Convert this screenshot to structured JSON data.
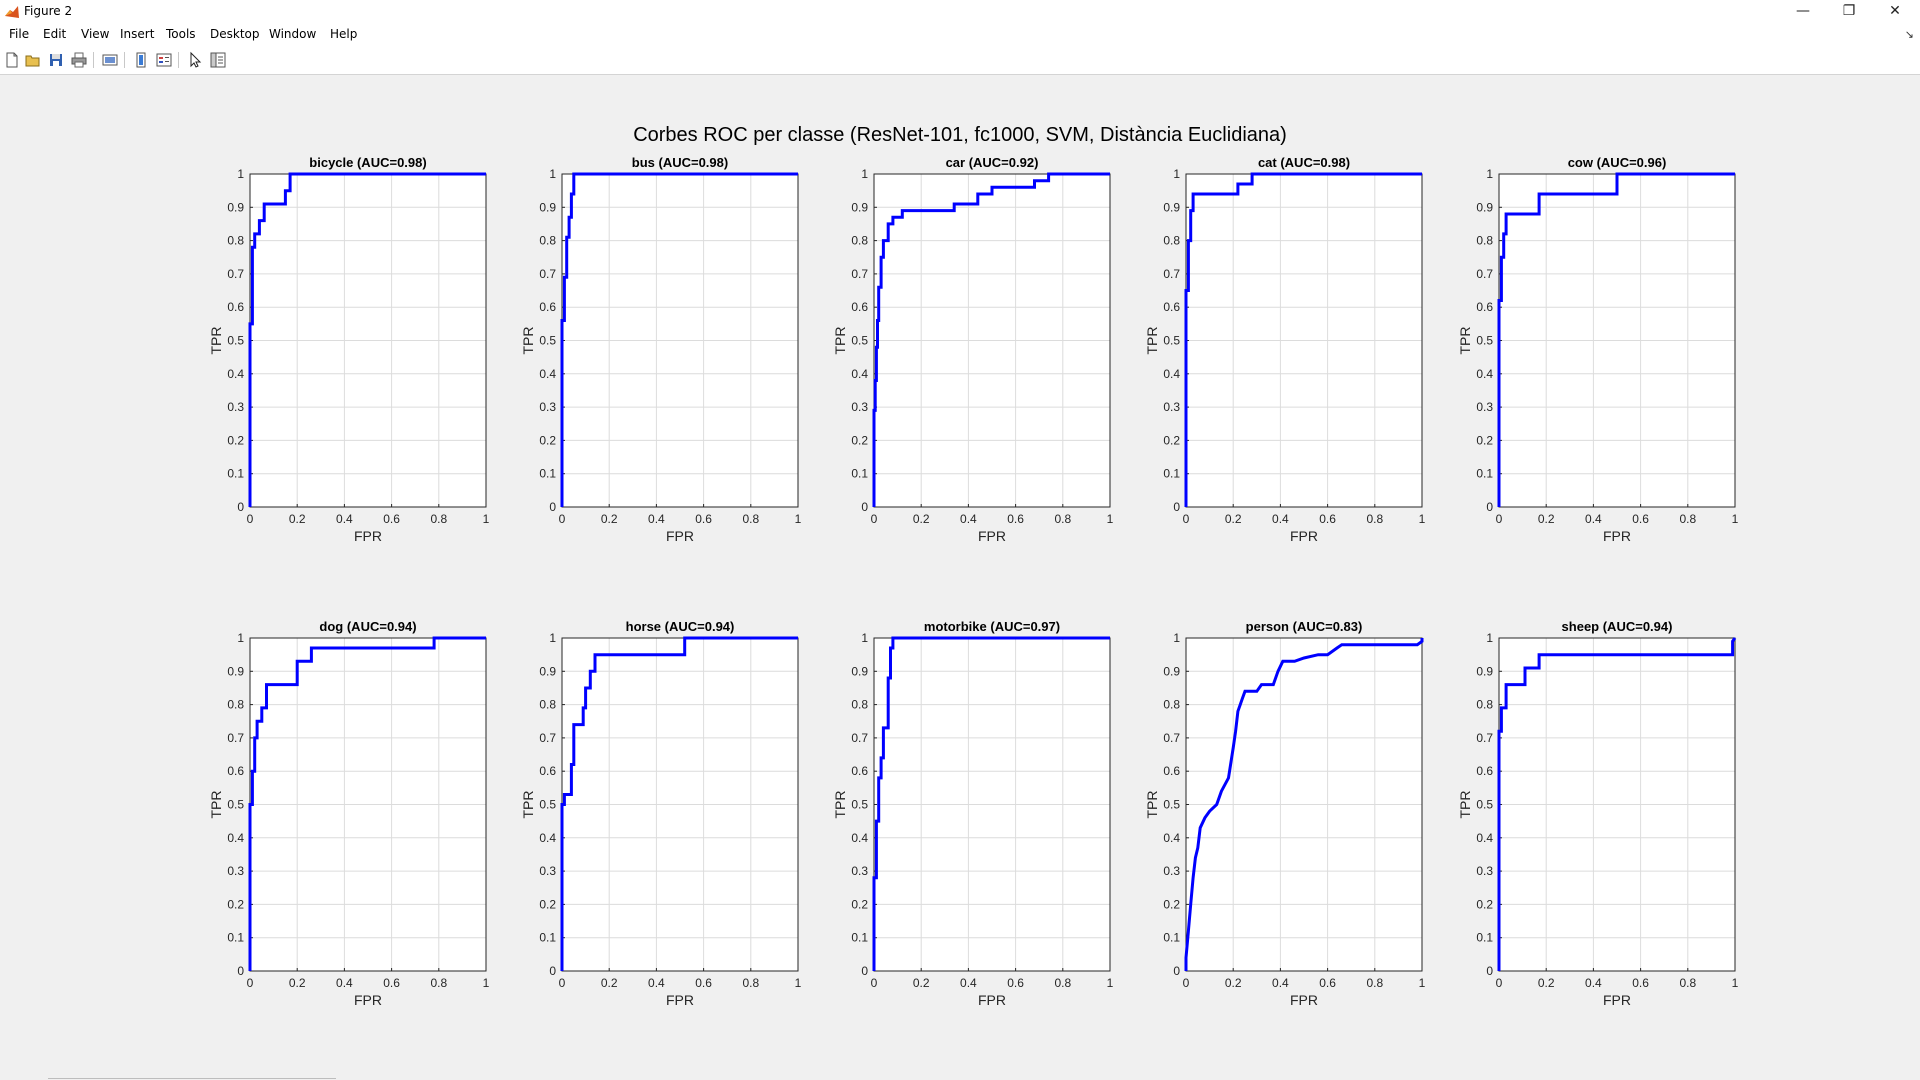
{
  "window": {
    "title": "Figure 2",
    "minimize_glyph": "—",
    "restore_glyph": "❐",
    "close_glyph": "✕"
  },
  "menu": [
    "File",
    "Edit",
    "View",
    "Insert",
    "Tools",
    "Desktop",
    "Window",
    "Help"
  ],
  "toolbar": {
    "icons": [
      "new-figure-icon",
      "open-file-icon",
      "save-icon",
      "print-icon",
      "link-plot-icon",
      "colorbar-icon",
      "legend-icon",
      "edit-plot-icon",
      "property-inspector-icon"
    ]
  },
  "colors": {
    "curve": "#0000ff",
    "grid": "#dcdcdc",
    "axes": "#262626"
  },
  "figure_title": "Corbes ROC per classe (ResNet-101, fc1000, SVM, Distància Euclidiana)",
  "chart_data": [
    {
      "type": "line",
      "title": "bicycle (AUC=0.98)",
      "xlabel": "FPR",
      "ylabel": "TPR",
      "xlim": [
        0,
        1
      ],
      "ylim": [
        0,
        1
      ],
      "grid": true,
      "x": [
        0,
        0,
        0.01,
        0.01,
        0.02,
        0.02,
        0.04,
        0.04,
        0.06,
        0.06,
        0.15,
        0.15,
        0.17,
        0.17,
        1
      ],
      "y": [
        0,
        0.55,
        0.55,
        0.78,
        0.78,
        0.82,
        0.82,
        0.86,
        0.86,
        0.91,
        0.91,
        0.95,
        0.95,
        1,
        1
      ]
    },
    {
      "type": "line",
      "title": "bus (AUC=0.98)",
      "xlabel": "FPR",
      "ylabel": "TPR",
      "xlim": [
        0,
        1
      ],
      "ylim": [
        0,
        1
      ],
      "grid": true,
      "x": [
        0,
        0,
        0.01,
        0.01,
        0.02,
        0.02,
        0.03,
        0.03,
        0.04,
        0.04,
        0.05,
        0.05,
        1
      ],
      "y": [
        0,
        0.56,
        0.56,
        0.69,
        0.69,
        0.81,
        0.81,
        0.87,
        0.87,
        0.94,
        0.94,
        1,
        1
      ]
    },
    {
      "type": "line",
      "title": "car (AUC=0.92)",
      "xlabel": "FPR",
      "ylabel": "TPR",
      "xlim": [
        0,
        1
      ],
      "ylim": [
        0,
        1
      ],
      "grid": true,
      "x": [
        0,
        0,
        0.005,
        0.005,
        0.01,
        0.01,
        0.015,
        0.015,
        0.02,
        0.02,
        0.03,
        0.03,
        0.04,
        0.04,
        0.06,
        0.06,
        0.08,
        0.08,
        0.12,
        0.12,
        0.34,
        0.34,
        0.44,
        0.44,
        0.5,
        0.5,
        0.68,
        0.68,
        0.74,
        0.74,
        1
      ],
      "y": [
        0,
        0.29,
        0.29,
        0.38,
        0.38,
        0.48,
        0.48,
        0.56,
        0.56,
        0.66,
        0.66,
        0.75,
        0.75,
        0.8,
        0.8,
        0.85,
        0.85,
        0.87,
        0.87,
        0.89,
        0.89,
        0.91,
        0.91,
        0.94,
        0.94,
        0.96,
        0.96,
        0.98,
        0.98,
        1,
        1
      ]
    },
    {
      "type": "line",
      "title": "cat (AUC=0.98)",
      "xlabel": "FPR",
      "ylabel": "TPR",
      "xlim": [
        0,
        1
      ],
      "ylim": [
        0,
        1
      ],
      "grid": true,
      "x": [
        0,
        0,
        0.01,
        0.01,
        0.02,
        0.02,
        0.03,
        0.03,
        0.22,
        0.22,
        0.28,
        0.28,
        1
      ],
      "y": [
        0,
        0.65,
        0.65,
        0.8,
        0.8,
        0.89,
        0.89,
        0.94,
        0.94,
        0.97,
        0.97,
        1,
        1
      ]
    },
    {
      "type": "line",
      "title": "cow (AUC=0.96)",
      "xlabel": "FPR",
      "ylabel": "TPR",
      "xlim": [
        0,
        1
      ],
      "ylim": [
        0,
        1
      ],
      "grid": true,
      "x": [
        0,
        0,
        0.01,
        0.01,
        0.02,
        0.02,
        0.03,
        0.03,
        0.17,
        0.17,
        0.5,
        0.5,
        1
      ],
      "y": [
        0,
        0.62,
        0.62,
        0.75,
        0.75,
        0.82,
        0.82,
        0.88,
        0.88,
        0.94,
        0.94,
        1,
        1
      ]
    },
    {
      "type": "line",
      "title": "dog (AUC=0.94)",
      "xlabel": "FPR",
      "ylabel": "TPR",
      "xlim": [
        0,
        1
      ],
      "ylim": [
        0,
        1
      ],
      "grid": true,
      "x": [
        0,
        0,
        0.01,
        0.01,
        0.02,
        0.02,
        0.03,
        0.03,
        0.05,
        0.05,
        0.07,
        0.07,
        0.2,
        0.2,
        0.26,
        0.26,
        0.78,
        0.78,
        1
      ],
      "y": [
        0,
        0.5,
        0.5,
        0.6,
        0.6,
        0.7,
        0.7,
        0.75,
        0.75,
        0.79,
        0.79,
        0.86,
        0.86,
        0.93,
        0.93,
        0.97,
        0.97,
        1,
        1
      ]
    },
    {
      "type": "line",
      "title": "horse (AUC=0.94)",
      "xlabel": "FPR",
      "ylabel": "TPR",
      "xlim": [
        0,
        1
      ],
      "ylim": [
        0,
        1
      ],
      "grid": true,
      "x": [
        0,
        0,
        0.01,
        0.01,
        0.04,
        0.04,
        0.05,
        0.05,
        0.09,
        0.09,
        0.1,
        0.1,
        0.12,
        0.12,
        0.14,
        0.14,
        0.52,
        0.52,
        1
      ],
      "y": [
        0,
        0.5,
        0.5,
        0.53,
        0.53,
        0.62,
        0.62,
        0.74,
        0.74,
        0.79,
        0.79,
        0.85,
        0.85,
        0.9,
        0.9,
        0.95,
        0.95,
        1,
        1
      ]
    },
    {
      "type": "line",
      "title": "motorbike (AUC=0.97)",
      "xlabel": "FPR",
      "ylabel": "TPR",
      "xlim": [
        0,
        1
      ],
      "ylim": [
        0,
        1
      ],
      "grid": true,
      "x": [
        0,
        0,
        0.01,
        0.01,
        0.02,
        0.02,
        0.03,
        0.03,
        0.04,
        0.04,
        0.06,
        0.06,
        0.07,
        0.07,
        0.08,
        0.08,
        1
      ],
      "y": [
        0,
        0.28,
        0.28,
        0.45,
        0.45,
        0.58,
        0.58,
        0.64,
        0.64,
        0.73,
        0.73,
        0.88,
        0.88,
        0.97,
        0.97,
        1,
        1
      ]
    },
    {
      "type": "line",
      "title": "person (AUC=0.83)",
      "xlabel": "FPR",
      "ylabel": "TPR",
      "xlim": [
        0,
        1
      ],
      "ylim": [
        0,
        1
      ],
      "grid": true,
      "x": [
        0,
        0,
        0.01,
        0.02,
        0.03,
        0.04,
        0.05,
        0.06,
        0.08,
        0.1,
        0.13,
        0.15,
        0.18,
        0.2,
        0.21,
        0.22,
        0.24,
        0.25,
        0.3,
        0.32,
        0.37,
        0.39,
        0.41,
        0.46,
        0.5,
        0.56,
        0.6,
        0.64,
        0.66,
        0.98,
        1,
        1
      ],
      "y": [
        0,
        0.04,
        0.12,
        0.2,
        0.28,
        0.34,
        0.37,
        0.43,
        0.46,
        0.48,
        0.5,
        0.54,
        0.58,
        0.67,
        0.72,
        0.78,
        0.82,
        0.84,
        0.84,
        0.86,
        0.86,
        0.9,
        0.93,
        0.93,
        0.94,
        0.95,
        0.95,
        0.97,
        0.98,
        0.98,
        0.99,
        1
      ]
    },
    {
      "type": "line",
      "title": "sheep (AUC=0.94)",
      "xlabel": "FPR",
      "ylabel": "TPR",
      "xlim": [
        0,
        1
      ],
      "ylim": [
        0,
        1
      ],
      "grid": true,
      "x": [
        0,
        0,
        0.01,
        0.01,
        0.03,
        0.03,
        0.11,
        0.11,
        0.17,
        0.17,
        0.99,
        0.99,
        1
      ],
      "y": [
        0,
        0.72,
        0.72,
        0.79,
        0.79,
        0.86,
        0.86,
        0.91,
        0.91,
        0.95,
        0.95,
        0.99,
        1
      ]
    }
  ]
}
